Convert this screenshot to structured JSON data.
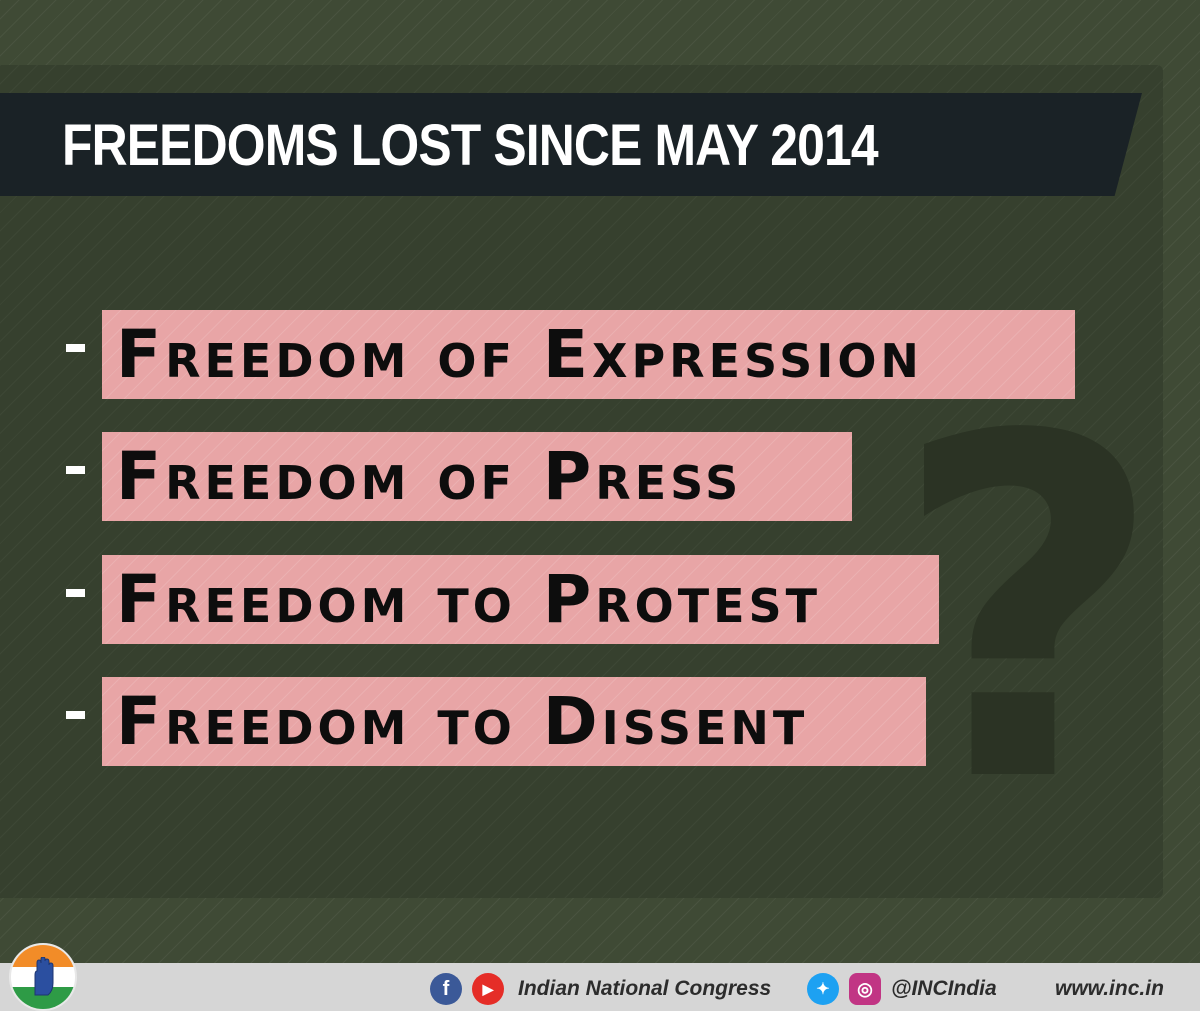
{
  "title": "FREEDOMS LOST SINCE MAY 2014",
  "items": [
    {
      "dash": "-",
      "label": "Freedom of Expression"
    },
    {
      "dash": "-",
      "label": "Freedom of Press"
    },
    {
      "dash": "-",
      "label": "Freedom to Protest"
    },
    {
      "dash": "-",
      "label": "Freedom to Dissent"
    }
  ],
  "decoration": {
    "symbol": "?"
  },
  "footer": {
    "party_name": "Indian National Congress",
    "handle": "@INCIndia",
    "website": "www.inc.in",
    "icons": [
      "facebook-icon",
      "youtube-icon",
      "twitter-icon",
      "instagram-icon"
    ]
  },
  "colors": {
    "background": "#3f4a35",
    "board": "#36402e",
    "title_banner": "#1a2226",
    "label_highlight": "#e8a5a6",
    "footer": "#d6d6d6"
  }
}
